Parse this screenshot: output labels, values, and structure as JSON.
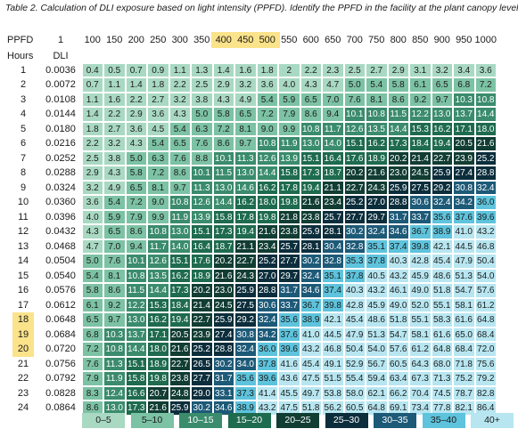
{
  "caption": "Table 2. Calculation of DLI  exposure based on light intensity (PPFD). Identify the PPFD in the facility at the plant canopy level.",
  "header": {
    "ppfd_label": "PPFD",
    "one_label": "1",
    "hours_label": "Hours",
    "dli_label": "DLI",
    "ppfd_values": [
      "100",
      "150",
      "200",
      "250",
      "300",
      "350",
      "400",
      "450",
      "500",
      "550",
      "600",
      "650",
      "700",
      "750",
      "800",
      "850",
      "900",
      "950",
      "1000"
    ],
    "highlighted_ppfd": [
      "400",
      "450",
      "500"
    ]
  },
  "highlighted_hours": [
    "18",
    "19",
    "20"
  ],
  "rows": [
    {
      "hour": "1",
      "dli": "0.0036",
      "values": [
        "0.4",
        "0.5",
        "0.7",
        "0.9",
        "1.1",
        "1.3",
        "1.4",
        "1.6",
        "1.8",
        "2",
        "2.2",
        "2.3",
        "2.5",
        "2.7",
        "2.9",
        "3.1",
        "3.2",
        "3.4",
        "3.6"
      ]
    },
    {
      "hour": "2",
      "dli": "0.0072",
      "values": [
        "0.7",
        "1.1",
        "1.4",
        "1.8",
        "2.2",
        "2.5",
        "2.9",
        "3.2",
        "3.6",
        "4.0",
        "4.3",
        "4.7",
        "5.0",
        "5.4",
        "5.8",
        "6.1",
        "6.5",
        "6.8",
        "7.2"
      ]
    },
    {
      "hour": "3",
      "dli": "0.0108",
      "values": [
        "1.1",
        "1.6",
        "2.2",
        "2.7",
        "3.2",
        "3.8",
        "4.3",
        "4.9",
        "5.4",
        "5.9",
        "6.5",
        "7.0",
        "7.6",
        "8.1",
        "8.6",
        "9.2",
        "9.7",
        "10.3",
        "10.8"
      ]
    },
    {
      "hour": "4",
      "dli": "0.0144",
      "values": [
        "1.4",
        "2.2",
        "2.9",
        "3.6",
        "4.3",
        "5.0",
        "5.8",
        "6.5",
        "7.2",
        "7.9",
        "8.6",
        "9.4",
        "10.1",
        "10.8",
        "11.5",
        "12.2",
        "13.0",
        "13.7",
        "14.4"
      ]
    },
    {
      "hour": "5",
      "dli": "0.0180",
      "values": [
        "1.8",
        "2.7",
        "3.6",
        "4.5",
        "5.4",
        "6.3",
        "7.2",
        "8.1",
        "9.0",
        "9.9",
        "10.8",
        "11.7",
        "12.6",
        "13.5",
        "14.4",
        "15.3",
        "16.2",
        "17.1",
        "18.0"
      ]
    },
    {
      "hour": "6",
      "dli": "0.0216",
      "values": [
        "2.2",
        "3.2",
        "4.3",
        "5.4",
        "6.5",
        "7.6",
        "8.6",
        "9.7",
        "10.8",
        "11.9",
        "13.0",
        "14.0",
        "15.1",
        "16.2",
        "17.3",
        "18.4",
        "19.4",
        "20.5",
        "21.6"
      ]
    },
    {
      "hour": "7",
      "dli": "0.0252",
      "values": [
        "2.5",
        "3.8",
        "5.0",
        "6.3",
        "7.6",
        "8.8",
        "10.1",
        "11.3",
        "12.6",
        "13.9",
        "15.1",
        "16.4",
        "17.6",
        "18.9",
        "20.2",
        "21.4",
        "22.7",
        "23.9",
        "25.2"
      ]
    },
    {
      "hour": "8",
      "dli": "0.0288",
      "values": [
        "2.9",
        "4.3",
        "5.8",
        "7.2",
        "8.6",
        "10.1",
        "11.5",
        "13.0",
        "14.4",
        "15.8",
        "17.3",
        "18.7",
        "20.2",
        "21.6",
        "23.0",
        "24.5",
        "25.9",
        "27.4",
        "28.8"
      ]
    },
    {
      "hour": "9",
      "dli": "0.0324",
      "values": [
        "3.2",
        "4.9",
        "6.5",
        "8.1",
        "9.7",
        "11.3",
        "13.0",
        "14.6",
        "16.2",
        "17.8",
        "19.4",
        "21.1",
        "22.7",
        "24.3",
        "25.9",
        "27.5",
        "29.2",
        "30.8",
        "32.4"
      ]
    },
    {
      "hour": "10",
      "dli": "0.0360",
      "values": [
        "3.6",
        "5.4",
        "7.2",
        "9.0",
        "10.8",
        "12.6",
        "14.4",
        "16.2",
        "18.0",
        "19.8",
        "21.6",
        "23.4",
        "25.2",
        "27.0",
        "28.8",
        "30.6",
        "32.4",
        "34.2",
        "36.0"
      ]
    },
    {
      "hour": "11",
      "dli": "0.0396",
      "values": [
        "4.0",
        "5.9",
        "7.9",
        "9.9",
        "11.9",
        "13.9",
        "15.8",
        "17.8",
        "19.8",
        "21.8",
        "23.8",
        "25.7",
        "27.7",
        "29.7",
        "31.7",
        "33.7",
        "35.6",
        "37.6",
        "39.6"
      ]
    },
    {
      "hour": "12",
      "dli": "0.0432",
      "values": [
        "4.3",
        "6.5",
        "8.6",
        "10.8",
        "13.0",
        "15.1",
        "17.3",
        "19.4",
        "21.6",
        "23.8",
        "25.9",
        "28.1",
        "30.2",
        "32.4",
        "34.6",
        "36.7",
        "38.9",
        "41.0",
        "43.2"
      ]
    },
    {
      "hour": "13",
      "dli": "0.0468",
      "values": [
        "4.7",
        "7.0",
        "9.4",
        "11.7",
        "14.0",
        "16.4",
        "18.7",
        "21.1",
        "23.4",
        "25.7",
        "28.1",
        "30.4",
        "32.8",
        "35.1",
        "37.4",
        "39.8",
        "42.1",
        "44.5",
        "46.8"
      ]
    },
    {
      "hour": "14",
      "dli": "0.0504",
      "values": [
        "5.0",
        "7.6",
        "10.1",
        "12.6",
        "15.1",
        "17.6",
        "20.2",
        "22.7",
        "25.2",
        "27.7",
        "30.2",
        "32.8",
        "35.3",
        "37.8",
        "40.3",
        "42.8",
        "45.4",
        "47.9",
        "50.4"
      ]
    },
    {
      "hour": "15",
      "dli": "0.0540",
      "values": [
        "5.4",
        "8.1",
        "10.8",
        "13.5",
        "16.2",
        "18.9",
        "21.6",
        "24.3",
        "27.0",
        "29.7",
        "32.4",
        "35.1",
        "37.8",
        "40.5",
        "43.2",
        "45.9",
        "48.6",
        "51.3",
        "54.0"
      ]
    },
    {
      "hour": "16",
      "dli": "0.0576",
      "values": [
        "5.8",
        "8.6",
        "11.5",
        "14.4",
        "17.3",
        "20.2",
        "23.0",
        "25.9",
        "28.8",
        "31.7",
        "34.6",
        "37.4",
        "40.3",
        "43.2",
        "46.1",
        "49.0",
        "51.8",
        "54.7",
        "57.6"
      ]
    },
    {
      "hour": "17",
      "dli": "0.0612",
      "values": [
        "6.1",
        "9.2",
        "12.2",
        "15.3",
        "18.4",
        "21.4",
        "24.5",
        "27.5",
        "30.6",
        "33.7",
        "36.7",
        "39.8",
        "42.8",
        "45.9",
        "49.0",
        "52.0",
        "55.1",
        "58.1",
        "61.2"
      ]
    },
    {
      "hour": "18",
      "dli": "0.0648",
      "values": [
        "6.5",
        "9.7",
        "13.0",
        "16.2",
        "19.4",
        "22.7",
        "25.9",
        "29.2",
        "32.4",
        "35.6",
        "38.9",
        "42.1",
        "45.4",
        "48.6",
        "51.8",
        "55.1",
        "58.3",
        "61.6",
        "64.8"
      ]
    },
    {
      "hour": "19",
      "dli": "0.0684",
      "values": [
        "6.8",
        "10.3",
        "13.7",
        "17.1",
        "20.5",
        "23.9",
        "27.4",
        "30.8",
        "34.2",
        "37.6",
        "41.0",
        "44.5",
        "47.9",
        "51.3",
        "54.7",
        "58.1",
        "61.6",
        "65.0",
        "68.4"
      ]
    },
    {
      "hour": "20",
      "dli": "0.0720",
      "values": [
        "7.2",
        "10.8",
        "14.4",
        "18.0",
        "21.6",
        "25.2",
        "28.8",
        "32.4",
        "36.0",
        "39.6",
        "43.2",
        "46.8",
        "50.4",
        "54.0",
        "57.6",
        "61.2",
        "64.8",
        "68.4",
        "72.0"
      ]
    },
    {
      "hour": "21",
      "dli": "0.0756",
      "values": [
        "7.6",
        "11.3",
        "15.1",
        "18.9",
        "22.7",
        "26.5",
        "30.2",
        "34.0",
        "37.8",
        "41.6",
        "45.4",
        "49.1",
        "52.9",
        "56.7",
        "60.5",
        "64.3",
        "68.0",
        "71.8",
        "75.6"
      ]
    },
    {
      "hour": "22",
      "dli": "0.0792",
      "values": [
        "7.9",
        "11.9",
        "15.8",
        "19.8",
        "23.8",
        "27.7",
        "31.7",
        "35.6",
        "39.6",
        "43.6",
        "47.5",
        "51.5",
        "55.4",
        "59.4",
        "63.4",
        "67.3",
        "71.3",
        "75.2",
        "79.2"
      ]
    },
    {
      "hour": "23",
      "dli": "0.0828",
      "values": [
        "8.3",
        "12.4",
        "16.6",
        "20.7",
        "24.8",
        "29.0",
        "33.1",
        "37.3",
        "41.4",
        "45.5",
        "49.7",
        "53.8",
        "58.0",
        "62.1",
        "66.2",
        "70.4",
        "74.5",
        "78.7",
        "82.8"
      ]
    },
    {
      "hour": "24",
      "dli": "0.0864",
      "values": [
        "8.6",
        "13.0",
        "17.3",
        "21.6",
        "25.9",
        "30.2",
        "34.6",
        "38.9",
        "43.2",
        "47.5",
        "51.8",
        "56.2",
        "60.5",
        "64.8",
        "69.1",
        "73.4",
        "77.8",
        "82.1",
        "86.4"
      ]
    }
  ],
  "legend": [
    {
      "label": "0–5",
      "bg": "#a9d9c3",
      "fg": "#1b1b1b"
    },
    {
      "label": "5–10",
      "bg": "#7cc2a4",
      "fg": "#1b1b1b"
    },
    {
      "label": "10–15",
      "bg": "#3a8c6c",
      "fg": "#ffffff"
    },
    {
      "label": "15–20",
      "bg": "#1e6b4f",
      "fg": "#ffffff"
    },
    {
      "label": "20–25",
      "bg": "#113d33",
      "fg": "#ffffff"
    },
    {
      "label": "25–30",
      "bg": "#0c2e3c",
      "fg": "#ffffff"
    },
    {
      "label": "30–35",
      "bg": "#1d5a78",
      "fg": "#ffffff"
    },
    {
      "label": "35–40",
      "bg": "#5ec3dc",
      "fg": "#1b1b1b"
    },
    {
      "label": "40+",
      "bg": "#b7e6f1",
      "fg": "#1b1b1b"
    }
  ],
  "colors": {
    "highlight": "#fbe38b",
    "cell_border": "#ffffff"
  }
}
